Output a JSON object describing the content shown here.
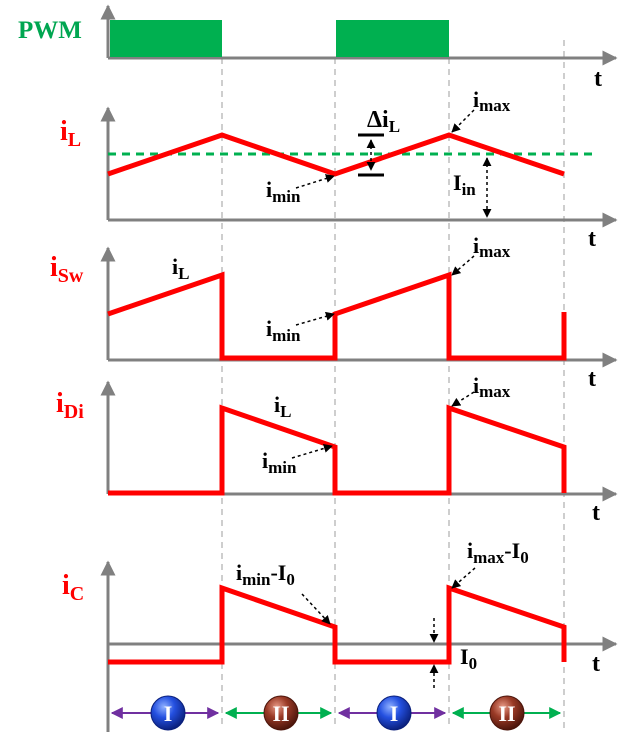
{
  "labels": {
    "pwm": "PWM",
    "t": "t",
    "iL_main": "i",
    "iL_main_sub": "L",
    "iSw_main": "i",
    "iSw_main_sub": "Sw",
    "iDi_main": "i",
    "iDi_main_sub": "Di",
    "iC_main": "i",
    "iC_main_sub": "C",
    "imax": "i",
    "imax_sub": "max",
    "imin": "i",
    "imin_sub": "min",
    "il": "i",
    "il_sub": "L",
    "delta_il": "Δi",
    "delta_il_sub": "L",
    "iin": "I",
    "iin_sub": "in",
    "io": "I",
    "io_sub": "0",
    "imin_io_a": "i",
    "imin_io_sub_a": "min",
    "imin_io_b": "-I",
    "imin_io_sub_b": "0",
    "imax_io_a": "i",
    "imax_io_sub_a": "max",
    "imax_io_b": "-I",
    "imax_io_sub_b": "0"
  },
  "intervals": [
    {
      "label": "I",
      "color": "#1a3fd6"
    },
    {
      "label": "II",
      "color": "#8a2a1a"
    },
    {
      "label": "I",
      "color": "#1a3fd6"
    },
    {
      "label": "II",
      "color": "#8a2a1a"
    }
  ],
  "colors": {
    "waveform": "#ff0000",
    "pwm": "#00b050",
    "average": "#00b050",
    "mode1_arrow": "#7030a0",
    "mode2_arrow": "#00b050"
  }
}
